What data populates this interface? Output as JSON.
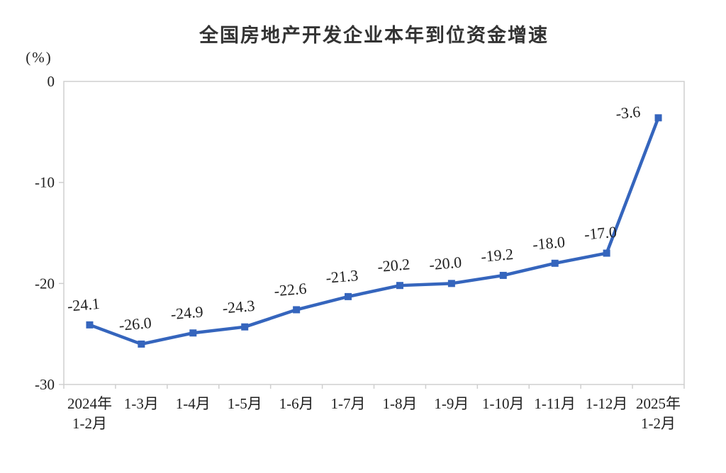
{
  "chart_data": {
    "type": "line",
    "title": "全国房地产开发企业本年到位资金增速",
    "ylabel": "(%)",
    "categories": [
      "2024年\n1-2月",
      "1-3月",
      "1-4月",
      "1-5月",
      "1-6月",
      "1-7月",
      "1-8月",
      "1-9月",
      "1-10月",
      "1-11月",
      "1-12月",
      "2025年\n1-2月"
    ],
    "values": [
      -24.1,
      -26.0,
      -24.9,
      -24.3,
      -22.6,
      -21.3,
      -20.2,
      -20.0,
      -19.2,
      -18.0,
      -17.0,
      -3.6
    ],
    "data_labels": [
      "-24.1",
      "-26.0",
      "-24.9",
      "-24.3",
      "-22.6",
      "-21.3",
      "-20.2",
      "-20.0",
      "-19.2",
      "-18.0",
      "-17.0",
      "-3.6"
    ],
    "ylim": [
      -30,
      0
    ],
    "yticks": [
      0,
      -10,
      -20,
      -30
    ],
    "ytick_labels": [
      "0",
      "-10",
      "-20",
      "-30"
    ],
    "grid": false,
    "legend": "none",
    "marker": "square",
    "line_color": "#3565BD",
    "axis_color": "#CFCFCF",
    "text_color": "#1F1F1F",
    "title_color": "#333333"
  }
}
